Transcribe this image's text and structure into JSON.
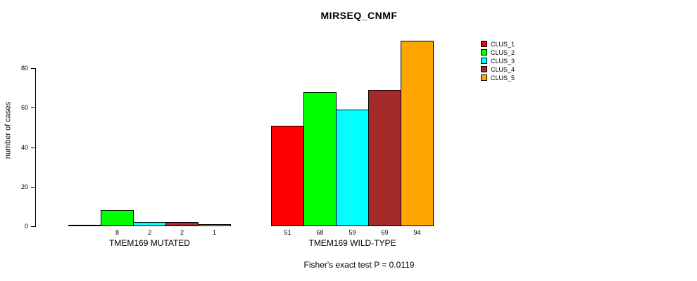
{
  "chart_data": {
    "type": "bar",
    "title": "MIRSEQ_CNMF",
    "ylabel": "number of cases",
    "xlabel": "",
    "yticks": [
      0,
      20,
      40,
      60,
      80
    ],
    "ylim": [
      0,
      94
    ],
    "grid": false,
    "background": "#FFFFFF",
    "annotation": "Fisher's exact test P = 0.0119",
    "series_colors": [
      "#FF0000",
      "#00FF00",
      "#00FFFF",
      "#A52A2A",
      "#FFA500"
    ],
    "legend": {
      "position": "top-right",
      "entries": [
        {
          "label": "CLUS_1",
          "color": "#FF0000"
        },
        {
          "label": "CLUS_2",
          "color": "#00FF00"
        },
        {
          "label": "CLUS_3",
          "color": "#00FFFF"
        },
        {
          "label": "CLUS_4",
          "color": "#A52A2A"
        },
        {
          "label": "CLUS_5",
          "color": "#FFA500"
        }
      ]
    },
    "groups": [
      {
        "label": "TMEM169 MUTATED",
        "series": [
          "CLUS_1",
          "CLUS_2",
          "CLUS_3",
          "CLUS_4",
          "CLUS_5"
        ],
        "values": [
          0,
          8,
          2,
          2,
          1
        ],
        "value_labels": [
          "",
          "8",
          "2",
          "2",
          "1"
        ]
      },
      {
        "label": "TMEM169 WILD-TYPE",
        "series": [
          "CLUS_1",
          "CLUS_2",
          "CLUS_3",
          "CLUS_4",
          "CLUS_5"
        ],
        "values": [
          51,
          68,
          59,
          69,
          94
        ],
        "value_labels": [
          "51",
          "68",
          "59",
          "69",
          "94"
        ]
      }
    ]
  }
}
